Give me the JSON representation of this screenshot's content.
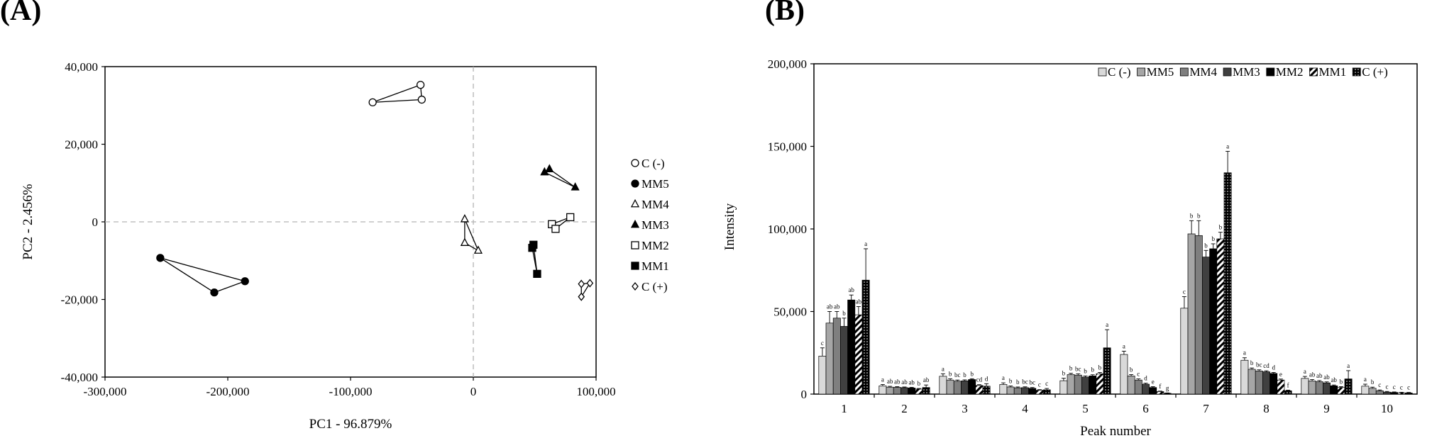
{
  "panels": {
    "a_label": "(A)",
    "b_label": "(B)"
  },
  "chart_data": [
    {
      "type": "scatter",
      "panel": "(A)",
      "xlabel": "PC1 - 96.879%",
      "ylabel": "PC2 - 2.456%",
      "xlim": [
        -300000,
        100000
      ],
      "ylim": [
        -40000,
        40000
      ],
      "x_ticks": [
        "-300,000",
        "-200,000",
        "-100,000",
        "0",
        "100,000"
      ],
      "y_ticks": [
        "-40,000",
        "-20,000",
        "0",
        "20,000",
        "40,000"
      ],
      "legend_position": "right",
      "legend_labels": [
        "C (-)",
        "MM5",
        "MM4",
        "MM3",
        "MM2",
        "MM1",
        "C (+)"
      ],
      "series": [
        {
          "name": "C (-)",
          "marker": "circle-open",
          "points": [
            [
              -82000,
              30800
            ],
            [
              -43000,
              35300
            ],
            [
              -42000,
              31500
            ]
          ]
        },
        {
          "name": "MM5",
          "marker": "circle-filled",
          "points": [
            [
              -255000,
              -9300
            ],
            [
              -211000,
              -18200
            ],
            [
              -186000,
              -15300
            ]
          ]
        },
        {
          "name": "MM4",
          "marker": "triangle-open",
          "points": [
            [
              -7000,
              700
            ],
            [
              -7000,
              -5400
            ],
            [
              4000,
              -7400
            ]
          ]
        },
        {
          "name": "MM3",
          "marker": "triangle-filled",
          "points": [
            [
              58000,
              12800
            ],
            [
              62000,
              13600
            ],
            [
              83000,
              8900
            ]
          ]
        },
        {
          "name": "MM2",
          "marker": "square-open",
          "points": [
            [
              64000,
              -600
            ],
            [
              67000,
              -1800
            ],
            [
              79000,
              1200
            ]
          ]
        },
        {
          "name": "MM1",
          "marker": "square-filled",
          "points": [
            [
              48000,
              -6700
            ],
            [
              49000,
              -5900
            ],
            [
              52000,
              -13400
            ]
          ]
        },
        {
          "name": "C (+)",
          "marker": "diamond-open",
          "points": [
            [
              88000,
              -16000
            ],
            [
              88000,
              -19300
            ],
            [
              95000,
              -15800
            ]
          ]
        }
      ]
    },
    {
      "type": "bar",
      "panel": "(B)",
      "xlabel": "Peak number",
      "ylabel": "Intensity",
      "ylim": [
        0,
        200000
      ],
      "y_ticks": [
        "0",
        "50,000",
        "100,000",
        "150,000",
        "200,000"
      ],
      "legend_position": "top-right",
      "categories": [
        "1",
        "2",
        "3",
        "4",
        "5",
        "6",
        "7",
        "8",
        "9",
        "10"
      ],
      "series": [
        {
          "name": "C (-)",
          "fill": "light-grey",
          "values": [
            23000,
            5000,
            10800,
            5800,
            8100,
            24000,
            52000,
            20500,
            9500,
            4800
          ],
          "errors": [
            5000,
            800,
            1500,
            1000,
            1500,
            2000,
            7000,
            1500,
            1200,
            1200
          ],
          "letters": [
            "c",
            "a",
            "a",
            "a",
            "b",
            "a",
            "c",
            "a",
            "a",
            "a"
          ]
        },
        {
          "name": "MM5",
          "fill": "silver",
          "values": [
            43000,
            4200,
            8500,
            4300,
            11800,
            11000,
            97000,
            15000,
            8000,
            3500
          ],
          "errors": [
            7000,
            500,
            800,
            600,
            800,
            800,
            8000,
            800,
            800,
            700
          ],
          "letters": [
            "ab",
            "ab",
            "b",
            "b",
            "b",
            "b",
            "b",
            "b",
            "ab",
            "b"
          ]
        },
        {
          "name": "MM4",
          "fill": "grey",
          "values": [
            46000,
            4100,
            7800,
            3800,
            11500,
            8500,
            96000,
            14000,
            7500,
            2000
          ],
          "errors": [
            4000,
            400,
            700,
            500,
            800,
            700,
            9000,
            700,
            700,
            500
          ],
          "letters": [
            "ab",
            "ab",
            "bc",
            "b",
            "bc",
            "c",
            "b",
            "bc",
            "ab",
            "c"
          ]
        },
        {
          "name": "MM3",
          "fill": "dark-grey",
          "values": [
            41000,
            3900,
            8000,
            3900,
            10300,
            6000,
            83000,
            13500,
            6800,
            1200
          ],
          "errors": [
            5000,
            400,
            600,
            500,
            700,
            600,
            4000,
            600,
            600,
            400
          ],
          "letters": [
            "b",
            "ab",
            "b",
            "bc",
            "b",
            "d",
            "b",
            "cd",
            "ab",
            "c"
          ]
        },
        {
          "name": "MM2",
          "fill": "black",
          "values": [
            57000,
            3700,
            8800,
            3500,
            11000,
            4000,
            88000,
            12500,
            5000,
            1000
          ],
          "errors": [
            3000,
            400,
            500,
            500,
            700,
            500,
            3000,
            600,
            500,
            300
          ],
          "letters": [
            "ab",
            "ab",
            "b",
            "bc",
            "b",
            "e",
            "b",
            "d",
            "ab",
            "c"
          ]
        },
        {
          "name": "MM1",
          "fill": "diagonal-stripes",
          "values": [
            48000,
            3000,
            5200,
            2300,
            12300,
            1500,
            94000,
            8500,
            4000,
            800
          ],
          "errors": [
            5000,
            400,
            500,
            400,
            800,
            300,
            4000,
            600,
            500,
            300
          ],
          "letters": [
            "ab",
            "b",
            "cd",
            "c",
            "b",
            "f",
            "b",
            "e",
            "b",
            "c"
          ]
        },
        {
          "name": "C (+)",
          "fill": "black-dotted",
          "values": [
            69000,
            4000,
            4800,
            2600,
            28000,
            500,
            134000,
            2000,
            9200,
            700
          ],
          "errors": [
            19000,
            1500,
            1500,
            800,
            11000,
            200,
            13000,
            400,
            5000,
            300
          ],
          "letters": [
            "a",
            "ab",
            "d",
            "c",
            "a",
            "g",
            "a",
            "f",
            "a",
            "c"
          ]
        }
      ]
    }
  ]
}
